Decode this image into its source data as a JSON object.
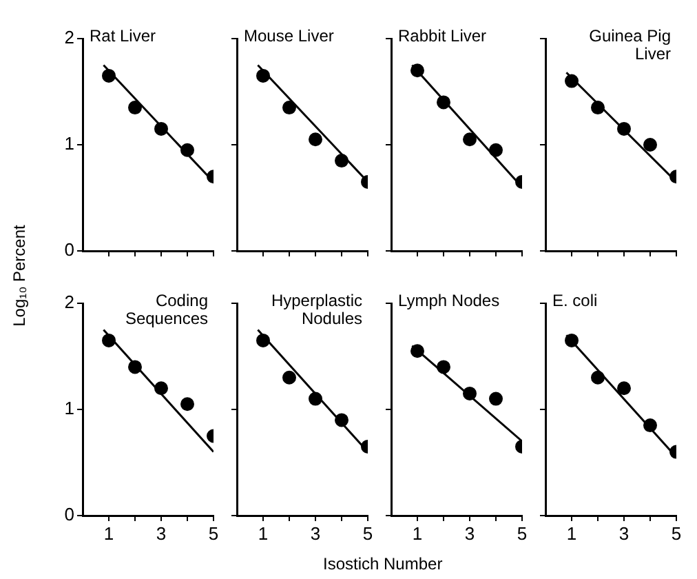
{
  "chart_data": [
    {
      "type": "scatter",
      "title": "Rat Liver",
      "ylabel": "Log₁₀ Percent",
      "grid": false,
      "tick_labels": "y",
      "xlim": [
        0,
        5
      ],
      "ylim": [
        0,
        2
      ],
      "xticks": [
        {
          "value": 1,
          "label": null
        },
        {
          "value": 2,
          "label": null
        },
        {
          "value": 3,
          "label": null
        },
        {
          "value": 4,
          "label": null
        },
        {
          "value": 5,
          "label": null
        }
      ],
      "yticks": [
        0,
        1,
        2
      ],
      "series": [
        {
          "type": "scatter",
          "marker": "circle",
          "color": "#000000",
          "x": [
            1,
            2,
            3,
            4,
            5
          ],
          "values": [
            1.65,
            1.35,
            1.15,
            0.95,
            0.7
          ]
        },
        {
          "type": "line",
          "marker": "none",
          "color": "#000000",
          "x": [
            0.8,
            5
          ],
          "values": [
            1.75,
            0.65
          ]
        }
      ]
    },
    {
      "type": "scatter",
      "title": "Mouse Liver",
      "grid": false,
      "tick_labels": false,
      "xlim": [
        0,
        5
      ],
      "ylim": [
        0,
        2
      ],
      "xticks": [
        {
          "value": 1,
          "label": null
        },
        {
          "value": 2,
          "label": null
        },
        {
          "value": 3,
          "label": null
        },
        {
          "value": 4,
          "label": null
        },
        {
          "value": 5,
          "label": null
        }
      ],
      "yticks": [
        {
          "value": 0,
          "label": null
        },
        {
          "value": 1,
          "label": null
        },
        {
          "value": 2,
          "label": null
        }
      ],
      "series": [
        {
          "type": "scatter",
          "marker": "circle",
          "color": "#000000",
          "x": [
            1,
            2,
            3,
            4,
            5
          ],
          "values": [
            1.65,
            1.35,
            1.05,
            0.85,
            0.65
          ]
        },
        {
          "type": "line",
          "marker": "none",
          "color": "#000000",
          "x": [
            0.8,
            5
          ],
          "values": [
            1.75,
            0.65
          ]
        }
      ]
    },
    {
      "type": "scatter",
      "title": "Rabbit Liver",
      "grid": false,
      "tick_labels": false,
      "xlim": [
        0,
        5
      ],
      "ylim": [
        0,
        2
      ],
      "xticks": [
        {
          "value": 1,
          "label": null
        },
        {
          "value": 2,
          "label": null
        },
        {
          "value": 3,
          "label": null
        },
        {
          "value": 4,
          "label": null
        },
        {
          "value": 5,
          "label": null
        }
      ],
      "yticks": [
        {
          "value": 0,
          "label": null
        },
        {
          "value": 1,
          "label": null
        },
        {
          "value": 2,
          "label": null
        }
      ],
      "series": [
        {
          "type": "scatter",
          "marker": "circle",
          "color": "#000000",
          "x": [
            1,
            2,
            3,
            4,
            5
          ],
          "values": [
            1.7,
            1.4,
            1.05,
            0.95,
            0.65
          ]
        },
        {
          "type": "line",
          "marker": "none",
          "color": "#000000",
          "x": [
            0.8,
            5
          ],
          "values": [
            1.75,
            0.6
          ]
        }
      ]
    },
    {
      "type": "scatter",
      "title": "Guinea Pig Liver",
      "grid": false,
      "tick_labels": false,
      "xlim": [
        0,
        5
      ],
      "ylim": [
        0,
        2
      ],
      "xticks": [
        {
          "value": 1,
          "label": null
        },
        {
          "value": 2,
          "label": null
        },
        {
          "value": 3,
          "label": null
        },
        {
          "value": 4,
          "label": null
        },
        {
          "value": 5,
          "label": null
        }
      ],
      "yticks": [
        {
          "value": 0,
          "label": null
        },
        {
          "value": 1,
          "label": null
        },
        {
          "value": 2,
          "label": null
        }
      ],
      "series": [
        {
          "type": "scatter",
          "marker": "circle",
          "color": "#000000",
          "x": [
            1,
            2,
            3,
            4,
            5
          ],
          "values": [
            1.6,
            1.35,
            1.15,
            1.0,
            0.7
          ]
        },
        {
          "type": "line",
          "marker": "none",
          "color": "#000000",
          "x": [
            0.8,
            5
          ],
          "values": [
            1.68,
            0.65
          ]
        }
      ]
    },
    {
      "type": "scatter",
      "title": "Coding Sequences",
      "grid": false,
      "xlim": [
        0,
        5
      ],
      "ylim": [
        0,
        2
      ],
      "xticks": [
        1,
        {
          "value": 2,
          "label": null
        },
        3,
        {
          "value": 4,
          "label": null
        },
        5
      ],
      "yticks": [
        0,
        1,
        2
      ],
      "series": [
        {
          "type": "scatter",
          "marker": "circle",
          "color": "#000000",
          "x": [
            1,
            2,
            3,
            4,
            5
          ],
          "values": [
            1.65,
            1.4,
            1.2,
            1.05,
            0.75
          ]
        },
        {
          "type": "line",
          "marker": "none",
          "color": "#000000",
          "x": [
            0.8,
            5
          ],
          "values": [
            1.75,
            0.6
          ]
        }
      ]
    },
    {
      "type": "scatter",
      "title": "Hyperplastic Nodules",
      "grid": false,
      "tick_labels": "x",
      "xlim": [
        0,
        5
      ],
      "ylim": [
        0,
        2
      ],
      "xticks": [
        1,
        {
          "value": 2,
          "label": null
        },
        3,
        {
          "value": 4,
          "label": null
        },
        5
      ],
      "yticks": [
        {
          "value": 0,
          "label": null
        },
        {
          "value": 1,
          "label": null
        },
        {
          "value": 2,
          "label": null
        }
      ],
      "series": [
        {
          "type": "scatter",
          "marker": "circle",
          "color": "#000000",
          "x": [
            1,
            2,
            3,
            4,
            5
          ],
          "values": [
            1.65,
            1.3,
            1.1,
            0.9,
            0.65
          ]
        },
        {
          "type": "line",
          "marker": "none",
          "color": "#000000",
          "x": [
            0.8,
            5
          ],
          "values": [
            1.75,
            0.6
          ]
        }
      ]
    },
    {
      "type": "scatter",
      "title": "Lymph Nodes",
      "xlabel": "Isostich Number",
      "grid": false,
      "tick_labels": "x",
      "xlim": [
        0,
        5
      ],
      "ylim": [
        0,
        2
      ],
      "xticks": [
        1,
        {
          "value": 2,
          "label": null
        },
        3,
        {
          "value": 4,
          "label": null
        },
        5
      ],
      "yticks": [
        {
          "value": 0,
          "label": null
        },
        {
          "value": 1,
          "label": null
        },
        {
          "value": 2,
          "label": null
        }
      ],
      "series": [
        {
          "type": "scatter",
          "marker": "circle",
          "color": "#000000",
          "x": [
            1,
            2,
            3,
            4,
            5
          ],
          "values": [
            1.55,
            1.4,
            1.15,
            1.1,
            0.65
          ]
        },
        {
          "type": "line",
          "marker": "none",
          "color": "#000000",
          "x": [
            0.8,
            5
          ],
          "values": [
            1.6,
            0.7
          ]
        }
      ]
    },
    {
      "type": "scatter",
      "title": "E. coli",
      "grid": false,
      "tick_labels": "x",
      "xlim": [
        0,
        5
      ],
      "ylim": [
        0,
        2
      ],
      "xticks": [
        1,
        {
          "value": 2,
          "label": null
        },
        3,
        {
          "value": 4,
          "label": null
        },
        5
      ],
      "yticks": [
        {
          "value": 0,
          "label": null
        },
        {
          "value": 1,
          "label": null
        },
        {
          "value": 2,
          "label": null
        }
      ],
      "series": [
        {
          "type": "scatter",
          "marker": "circle",
          "color": "#000000",
          "x": [
            1,
            2,
            3,
            4,
            5
          ],
          "values": [
            1.65,
            1.3,
            1.2,
            0.85,
            0.6
          ]
        },
        {
          "type": "line",
          "marker": "none",
          "color": "#000000",
          "x": [
            0.8,
            5
          ],
          "values": [
            1.7,
            0.55
          ]
        }
      ]
    }
  ]
}
